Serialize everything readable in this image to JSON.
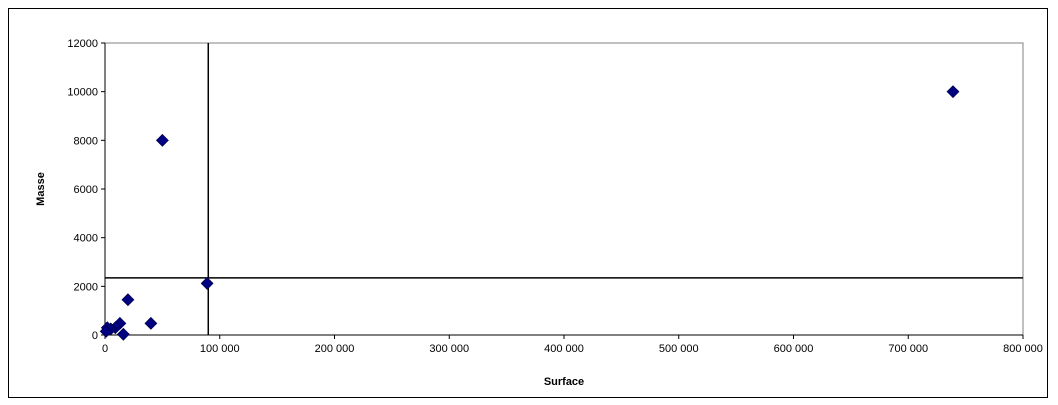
{
  "chart_data": {
    "type": "scatter",
    "title": "",
    "xlabel": "Surface",
    "ylabel": "Masse",
    "xlim": [
      0,
      800000
    ],
    "ylim": [
      0,
      12000
    ],
    "x_ticks": [
      0,
      100000,
      200000,
      300000,
      400000,
      500000,
      600000,
      700000,
      800000
    ],
    "x_tick_labels": [
      "0",
      "100 000",
      "200 000",
      "300 000",
      "400 000",
      "500 000",
      "600 000",
      "700 000",
      "800 000"
    ],
    "y_ticks": [
      0,
      2000,
      4000,
      6000,
      8000,
      10000,
      12000
    ],
    "y_tick_labels": [
      "0",
      "2000",
      "4000",
      "6000",
      "8000",
      "10000",
      "12000"
    ],
    "grid": false,
    "legend": "none",
    "marker": "diamond",
    "marker_color": "#000080",
    "reference_lines": {
      "vertical_x": 90000,
      "horizontal_y": 2350
    },
    "points": [
      {
        "x": 739000,
        "y": 10000
      },
      {
        "x": 50000,
        "y": 8000
      },
      {
        "x": 89000,
        "y": 2120
      },
      {
        "x": 20000,
        "y": 1450
      },
      {
        "x": 40000,
        "y": 480
      },
      {
        "x": 13000,
        "y": 480
      },
      {
        "x": 9000,
        "y": 300
      },
      {
        "x": 5000,
        "y": 250
      },
      {
        "x": 2000,
        "y": 300
      },
      {
        "x": 1000,
        "y": 150
      },
      {
        "x": 16000,
        "y": 30
      }
    ]
  }
}
